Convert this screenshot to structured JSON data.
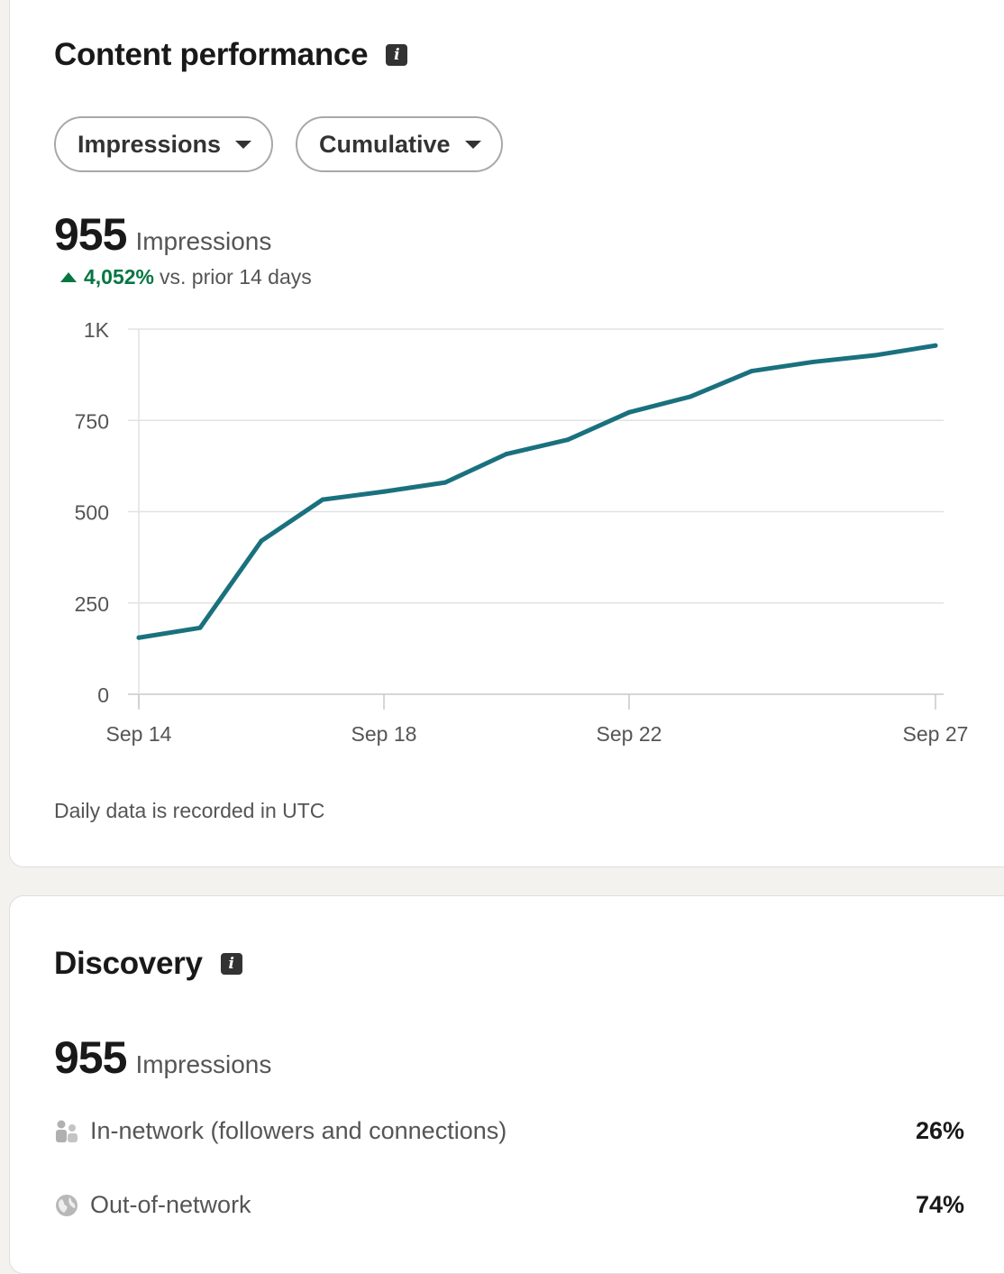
{
  "performance": {
    "title": "Content performance",
    "metric_dropdown": "Impressions",
    "mode_dropdown": "Cumulative",
    "total": "955",
    "total_label": "Impressions",
    "change_pct": "4,052%",
    "change_text": "vs. prior 14 days",
    "footnote": "Daily data is recorded in UTC"
  },
  "chart_data": {
    "type": "line",
    "y_tick_labels": [
      "0",
      "250",
      "500",
      "750",
      "1K"
    ],
    "y_ticks": [
      0,
      250,
      500,
      750,
      1000
    ],
    "x_tick_labels": [
      "Sep 14",
      "Sep 18",
      "Sep 22",
      "Sep 27"
    ],
    "ylim": [
      0,
      1000
    ],
    "grid": true,
    "color": "#1a717e",
    "series": [
      {
        "x": [
          "Sep 14",
          "Sep 15",
          "Sep 16",
          "Sep 17",
          "Sep 18",
          "Sep 19",
          "Sep 20",
          "Sep 21",
          "Sep 22",
          "Sep 23",
          "Sep 24",
          "Sep 25",
          "Sep 26",
          "Sep 27"
        ],
        "values": [
          155,
          182,
          420,
          533,
          555,
          580,
          658,
          697,
          772,
          815,
          885,
          910,
          928,
          955
        ]
      }
    ]
  },
  "discovery": {
    "title": "Discovery",
    "total": "955",
    "total_label": "Impressions",
    "rows": [
      {
        "label": "In-network (followers and connections)",
        "value": "26%",
        "icon": "people-icon"
      },
      {
        "label": "Out-of-network",
        "value": "74%",
        "icon": "globe-icon"
      }
    ]
  }
}
